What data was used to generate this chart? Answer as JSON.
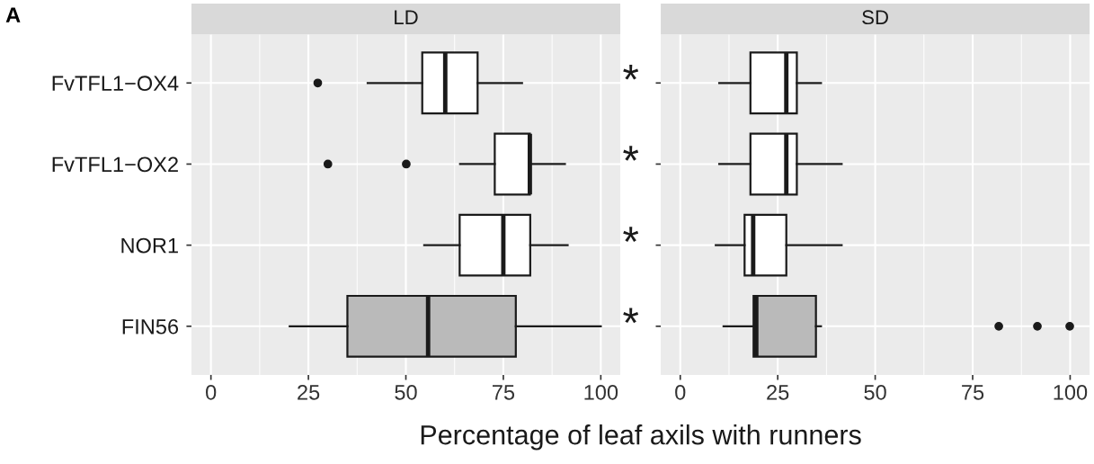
{
  "chart_data": [
    {
      "type": "box",
      "title": "LD",
      "xlabel": "Percentage of leaf axils with runners",
      "orientation": "horizontal",
      "categories": [
        "FvTFL1−OX4",
        "FvTFL1−OX2",
        "NOR1",
        "FIN56"
      ],
      "xlim": [
        -5,
        105
      ],
      "xticks": [
        0,
        25,
        50,
        75,
        100
      ],
      "grid": true,
      "annotations": [
        "A"
      ],
      "series": [
        {
          "colors": [
            "#ffffff",
            "#ffffff",
            "#ffffff",
            "#bababa"
          ],
          "boxes": [
            {
              "low": 40.2,
              "q1": 54.2,
              "median": 60.1,
              "q3": 68.4,
              "high": 79.8,
              "outliers": [
                27.4
              ]
            },
            {
              "low": 63.9,
              "q1": 72.8,
              "median": 81.8,
              "q3": 81.8,
              "high": 90.8,
              "outliers": [
                30.0,
                50.1
              ]
            },
            {
              "low": 54.7,
              "q1": 63.8,
              "median": 75.0,
              "q3": 81.9,
              "high": 91.5
            },
            {
              "low": 20.2,
              "q1": 35.0,
              "median": 55.7,
              "q3": 78.2,
              "high": 100
            }
          ]
        }
      ]
    },
    {
      "type": "box",
      "title": "SD",
      "orientation": "horizontal",
      "categories": [
        null,
        null,
        null,
        null
      ],
      "xlim": [
        -5,
        105
      ],
      "xticks": [
        0,
        25,
        50,
        75,
        100
      ],
      "grid": true,
      "tick_labels": "x",
      "annotations": [
        "*",
        "*",
        "*",
        "*"
      ],
      "series": [
        {
          "colors": [
            "#ffffff",
            "#ffffff",
            "#ffffff",
            "#bababa"
          ],
          "boxes": [
            {
              "low": 10.0,
              "q1": 18.0,
              "median": 27.2,
              "q3": 29.9,
              "high": 36.1
            },
            {
              "low": 10.0,
              "q1": 18.0,
              "median": 27.2,
              "q3": 29.9,
              "high": 41.4
            },
            {
              "low": 9.1,
              "q1": 16.5,
              "median": 18.7,
              "q3": 27.2,
              "high": 41.4
            },
            {
              "low": 11.1,
              "q1": 18.8,
              "median": 19.5,
              "q3": 34.8,
              "high": 36.1,
              "outliers": [
                81.7,
                91.6,
                99.9
              ]
            }
          ]
        }
      ]
    }
  ]
}
